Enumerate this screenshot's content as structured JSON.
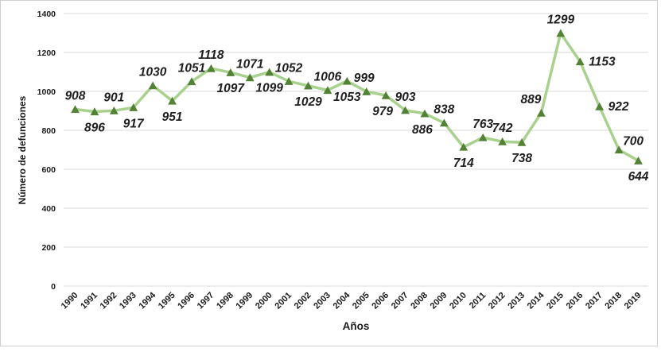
{
  "chart": {
    "xlabel": "Años",
    "ylabel": "Número de defunciones"
  },
  "chart_data": {
    "type": "line",
    "title": "",
    "xlabel": "Años",
    "ylabel": "Número de defunciones",
    "ylim": [
      0,
      1400
    ],
    "yticks": [
      0,
      200,
      400,
      600,
      800,
      1000,
      1200,
      1400
    ],
    "grid": true,
    "legend": false,
    "data_labels": true,
    "categories": [
      "1990",
      "1991",
      "1992",
      "1993",
      "1994",
      "1995",
      "1996",
      "1997",
      "1998",
      "1999",
      "2000",
      "2001",
      "2002",
      "2003",
      "2004",
      "2005",
      "2006",
      "2007",
      "2008",
      "2009",
      "2010",
      "2011",
      "2012",
      "2013",
      "2014",
      "2015",
      "2016",
      "2017",
      "2018",
      "2019"
    ],
    "series": [
      {
        "name": "Número de defunciones",
        "values": [
          908,
          896,
          901,
          917,
          1030,
          951,
          1051,
          1118,
          1097,
          1071,
          1099,
          1052,
          1029,
          1006,
          1053,
          999,
          979,
          903,
          886,
          838,
          714,
          763,
          742,
          738,
          889,
          1299,
          1153,
          922,
          700,
          644
        ]
      }
    ],
    "label_sides": [
      "above",
      "below",
      "above",
      "below",
      "above",
      "below",
      "above",
      "above",
      "below",
      "above",
      "below",
      "above",
      "below",
      "above",
      "below",
      "above",
      "below",
      "above",
      "below",
      "above",
      "below",
      "above",
      "above",
      "below",
      "above",
      "above",
      "right",
      "right",
      "above-right",
      "below"
    ],
    "label_dx_overrides": {
      "2014": -13,
      "2005": -3,
      "2006": -4,
      "2008": -3
    },
    "colors": {
      "line": "#a9d18e",
      "marker": "#538135",
      "gridline": "#d9d9d9",
      "tick_text": "#1a1a1a",
      "data_label_text": "#1f1f1f",
      "frame_border": "#cfcfcf",
      "background": "#ffffff"
    }
  }
}
